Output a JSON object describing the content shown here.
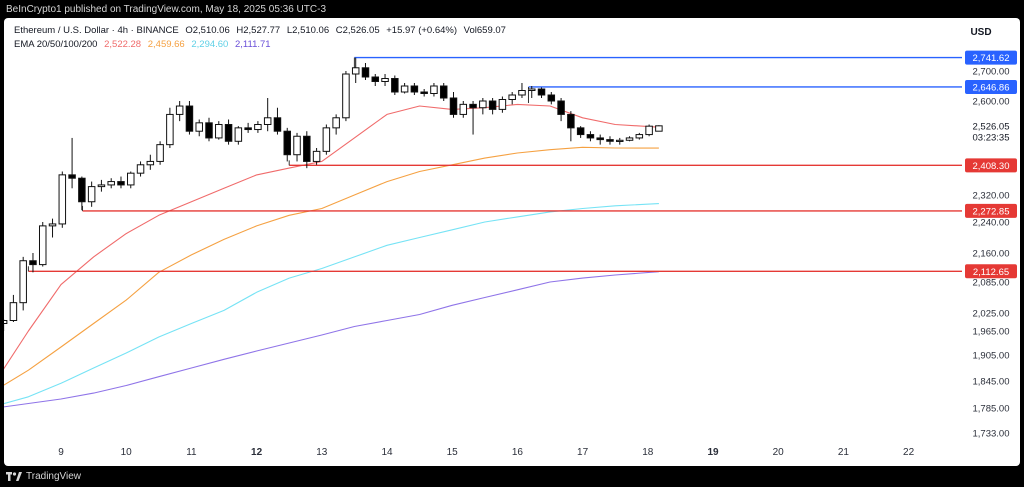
{
  "header": {
    "text": "BeInCrypto1 published on TradingView.com, May 18, 2025 05:36 UTC-3"
  },
  "legend": {
    "symbol": "Ethereum / U.S. Dollar · 4h · BINANCE",
    "o": "O2,510.06",
    "h": "H2,527.77",
    "l": "L2,510.06",
    "c": "C2,526.05",
    "chg": "+15.97 (+0.64%)",
    "vol": "Vol659.07",
    "ema_label": "EMA 20/50/100/200",
    "ema20": "2,522.28",
    "ema50": "2,459.66",
    "ema100": "2,294.60",
    "ema200": "2,111.71"
  },
  "footer": {
    "brand": "TradingView"
  },
  "colors": {
    "up": "#ffffff",
    "down": "#000000",
    "ema20": "#f06b6b",
    "ema50": "#f5a142",
    "ema100": "#76e3f5",
    "ema200": "#8f74e8",
    "support": "#e53935",
    "resistance": "#2962ff"
  },
  "chart_data": {
    "type": "candlestick",
    "currency": "USD",
    "price_labels": [
      {
        "label": "2,741.62",
        "value": 2741.62,
        "kind": "resistance"
      },
      {
        "label": "2,700.00",
        "value": 2700
      },
      {
        "label": "2,646.86",
        "value": 2646.86,
        "kind": "resistance"
      },
      {
        "label": "2,600.00",
        "value": 2600
      },
      {
        "label": "2,526.05",
        "value": 2526.05,
        "kind": "current"
      },
      {
        "label": "03:23:35",
        "value": 2500,
        "kind": "countdown"
      },
      {
        "label": "2,408.30",
        "value": 2408.3,
        "kind": "support"
      },
      {
        "label": "2,320.00",
        "value": 2320
      },
      {
        "label": "2,272.85",
        "value": 2272.85,
        "kind": "support"
      },
      {
        "label": "2,240.00",
        "value": 2240
      },
      {
        "label": "2,160.00",
        "value": 2160
      },
      {
        "label": "2,112.65",
        "value": 2112.65,
        "kind": "support"
      },
      {
        "label": "2,085.00",
        "value": 2085
      },
      {
        "label": "2,025.00",
        "value": 2025
      },
      {
        "label": "1,965.00",
        "value": 1965
      },
      {
        "label": "1,905.00",
        "value": 1905
      },
      {
        "label": "1,845.00",
        "value": 1845
      },
      {
        "label": "1,785.00",
        "value": 1785
      },
      {
        "label": "1,733.00",
        "value": 1733
      }
    ],
    "x_ticks": [
      {
        "label": "9",
        "day": 9,
        "bold": false
      },
      {
        "label": "10",
        "day": 10,
        "bold": false
      },
      {
        "label": "11",
        "day": 11,
        "bold": false
      },
      {
        "label": "12",
        "day": 12,
        "bold": true
      },
      {
        "label": "13",
        "day": 13,
        "bold": false
      },
      {
        "label": "14",
        "day": 14,
        "bold": false
      },
      {
        "label": "15",
        "day": 15,
        "bold": false
      },
      {
        "label": "16",
        "day": 16,
        "bold": false
      },
      {
        "label": "17",
        "day": 17,
        "bold": false
      },
      {
        "label": "18",
        "day": 18,
        "bold": false
      },
      {
        "label": "19",
        "day": 19,
        "bold": true
      },
      {
        "label": "20",
        "day": 20,
        "bold": false
      },
      {
        "label": "21",
        "day": 21,
        "bold": false
      },
      {
        "label": "22",
        "day": 22,
        "bold": false
      }
    ],
    "horizontal_levels": [
      {
        "value": 2741.62,
        "from_day": 13.5,
        "kind": "resistance"
      },
      {
        "value": 2646.86,
        "from_day": 16.17,
        "kind": "resistance"
      },
      {
        "value": 2408.3,
        "from_day": 12.5,
        "kind": "support"
      },
      {
        "value": 2272.85,
        "from_day": 9.33,
        "kind": "support"
      },
      {
        "value": 2112.65,
        "from_day": 8.5,
        "kind": "support"
      }
    ],
    "candles": [
      {
        "day": 8.12,
        "o": 1990,
        "h": 2005,
        "l": 1965,
        "c": 2000
      },
      {
        "day": 8.27,
        "o": 2000,
        "h": 2060,
        "l": 1995,
        "c": 2045
      },
      {
        "day": 8.42,
        "o": 2045,
        "h": 2150,
        "l": 2030,
        "c": 2140
      },
      {
        "day": 8.57,
        "o": 2140,
        "h": 2160,
        "l": 2110,
        "c": 2130
      },
      {
        "day": 8.72,
        "o": 2130,
        "h": 2240,
        "l": 2125,
        "c": 2230
      },
      {
        "day": 8.87,
        "o": 2230,
        "h": 2250,
        "l": 2200,
        "c": 2235
      },
      {
        "day": 9.02,
        "o": 2235,
        "h": 2390,
        "l": 2225,
        "c": 2380
      },
      {
        "day": 9.17,
        "o": 2380,
        "h": 2490,
        "l": 2340,
        "c": 2370
      },
      {
        "day": 9.32,
        "o": 2370,
        "h": 2375,
        "l": 2275,
        "c": 2300
      },
      {
        "day": 9.47,
        "o": 2300,
        "h": 2360,
        "l": 2285,
        "c": 2345
      },
      {
        "day": 9.62,
        "o": 2345,
        "h": 2365,
        "l": 2330,
        "c": 2350
      },
      {
        "day": 9.77,
        "o": 2350,
        "h": 2370,
        "l": 2340,
        "c": 2360
      },
      {
        "day": 9.92,
        "o": 2360,
        "h": 2375,
        "l": 2340,
        "c": 2350
      },
      {
        "day": 10.07,
        "o": 2350,
        "h": 2390,
        "l": 2340,
        "c": 2385
      },
      {
        "day": 10.22,
        "o": 2385,
        "h": 2420,
        "l": 2375,
        "c": 2410
      },
      {
        "day": 10.37,
        "o": 2410,
        "h": 2440,
        "l": 2395,
        "c": 2420
      },
      {
        "day": 10.52,
        "o": 2420,
        "h": 2480,
        "l": 2410,
        "c": 2470
      },
      {
        "day": 10.67,
        "o": 2470,
        "h": 2580,
        "l": 2460,
        "c": 2560
      },
      {
        "day": 10.82,
        "o": 2560,
        "h": 2600,
        "l": 2540,
        "c": 2585
      },
      {
        "day": 10.97,
        "o": 2585,
        "h": 2600,
        "l": 2500,
        "c": 2510
      },
      {
        "day": 11.12,
        "o": 2510,
        "h": 2545,
        "l": 2495,
        "c": 2535
      },
      {
        "day": 11.27,
        "o": 2535,
        "h": 2550,
        "l": 2480,
        "c": 2490
      },
      {
        "day": 11.42,
        "o": 2490,
        "h": 2540,
        "l": 2485,
        "c": 2530
      },
      {
        "day": 11.57,
        "o": 2530,
        "h": 2545,
        "l": 2470,
        "c": 2480
      },
      {
        "day": 11.72,
        "o": 2480,
        "h": 2525,
        "l": 2470,
        "c": 2520
      },
      {
        "day": 11.87,
        "o": 2520,
        "h": 2535,
        "l": 2505,
        "c": 2515
      },
      {
        "day": 12.02,
        "o": 2515,
        "h": 2540,
        "l": 2505,
        "c": 2530
      },
      {
        "day": 12.17,
        "o": 2530,
        "h": 2610,
        "l": 2510,
        "c": 2550
      },
      {
        "day": 12.32,
        "o": 2550,
        "h": 2580,
        "l": 2500,
        "c": 2510
      },
      {
        "day": 12.47,
        "o": 2510,
        "h": 2520,
        "l": 2420,
        "c": 2440
      },
      {
        "day": 12.62,
        "o": 2440,
        "h": 2505,
        "l": 2420,
        "c": 2495
      },
      {
        "day": 12.77,
        "o": 2495,
        "h": 2510,
        "l": 2400,
        "c": 2420
      },
      {
        "day": 12.92,
        "o": 2420,
        "h": 2460,
        "l": 2410,
        "c": 2450
      },
      {
        "day": 13.07,
        "o": 2450,
        "h": 2530,
        "l": 2440,
        "c": 2520
      },
      {
        "day": 13.22,
        "o": 2520,
        "h": 2560,
        "l": 2500,
        "c": 2550
      },
      {
        "day": 13.37,
        "o": 2550,
        "h": 2700,
        "l": 2540,
        "c": 2690
      },
      {
        "day": 13.52,
        "o": 2690,
        "h": 2741,
        "l": 2660,
        "c": 2710
      },
      {
        "day": 13.67,
        "o": 2710,
        "h": 2725,
        "l": 2670,
        "c": 2680
      },
      {
        "day": 13.82,
        "o": 2680,
        "h": 2690,
        "l": 2650,
        "c": 2665
      },
      {
        "day": 13.97,
        "o": 2665,
        "h": 2690,
        "l": 2650,
        "c": 2675
      },
      {
        "day": 14.12,
        "o": 2675,
        "h": 2685,
        "l": 2620,
        "c": 2630
      },
      {
        "day": 14.27,
        "o": 2630,
        "h": 2660,
        "l": 2625,
        "c": 2650
      },
      {
        "day": 14.42,
        "o": 2650,
        "h": 2660,
        "l": 2620,
        "c": 2630
      },
      {
        "day": 14.57,
        "o": 2630,
        "h": 2640,
        "l": 2615,
        "c": 2625
      },
      {
        "day": 14.72,
        "o": 2625,
        "h": 2660,
        "l": 2615,
        "c": 2650
      },
      {
        "day": 14.87,
        "o": 2650,
        "h": 2660,
        "l": 2600,
        "c": 2610
      },
      {
        "day": 15.02,
        "o": 2610,
        "h": 2630,
        "l": 2550,
        "c": 2560
      },
      {
        "day": 15.17,
        "o": 2560,
        "h": 2600,
        "l": 2550,
        "c": 2590
      },
      {
        "day": 15.32,
        "o": 2590,
        "h": 2600,
        "l": 2500,
        "c": 2580
      },
      {
        "day": 15.47,
        "o": 2580,
        "h": 2610,
        "l": 2560,
        "c": 2600
      },
      {
        "day": 15.62,
        "o": 2600,
        "h": 2610,
        "l": 2560,
        "c": 2575
      },
      {
        "day": 15.77,
        "o": 2575,
        "h": 2615,
        "l": 2565,
        "c": 2605
      },
      {
        "day": 15.92,
        "o": 2605,
        "h": 2630,
        "l": 2590,
        "c": 2620
      },
      {
        "day": 16.07,
        "o": 2620,
        "h": 2660,
        "l": 2610,
        "c": 2635
      },
      {
        "day": 16.22,
        "o": 2635,
        "h": 2650,
        "l": 2610,
        "c": 2640
      },
      {
        "day": 16.37,
        "o": 2640,
        "h": 2645,
        "l": 2610,
        "c": 2620
      },
      {
        "day": 16.52,
        "o": 2620,
        "h": 2630,
        "l": 2590,
        "c": 2600
      },
      {
        "day": 16.67,
        "o": 2600,
        "h": 2610,
        "l": 2540,
        "c": 2560
      },
      {
        "day": 16.82,
        "o": 2560,
        "h": 2570,
        "l": 2480,
        "c": 2520
      },
      {
        "day": 16.97,
        "o": 2520,
        "h": 2525,
        "l": 2490,
        "c": 2500
      },
      {
        "day": 17.12,
        "o": 2500,
        "h": 2510,
        "l": 2480,
        "c": 2490
      },
      {
        "day": 17.27,
        "o": 2490,
        "h": 2500,
        "l": 2470,
        "c": 2485
      },
      {
        "day": 17.42,
        "o": 2485,
        "h": 2495,
        "l": 2470,
        "c": 2480
      },
      {
        "day": 17.57,
        "o": 2480,
        "h": 2490,
        "l": 2470,
        "c": 2483
      },
      {
        "day": 17.72,
        "o": 2483,
        "h": 2495,
        "l": 2480,
        "c": 2490
      },
      {
        "day": 17.87,
        "o": 2490,
        "h": 2505,
        "l": 2485,
        "c": 2500
      },
      {
        "day": 18.02,
        "o": 2500,
        "h": 2530,
        "l": 2495,
        "c": 2525
      },
      {
        "day": 18.17,
        "o": 2510.06,
        "h": 2527.77,
        "l": 2510.06,
        "c": 2526.05
      }
    ],
    "ema": [
      {
        "name": "EMA 20",
        "color": "#f06b6b",
        "points": [
          [
            8.0,
            1845
          ],
          [
            8.5,
            1965
          ],
          [
            9.0,
            2080
          ],
          [
            9.5,
            2150
          ],
          [
            10.0,
            2210
          ],
          [
            10.5,
            2260
          ],
          [
            11.0,
            2300
          ],
          [
            11.5,
            2340
          ],
          [
            12.0,
            2380
          ],
          [
            12.5,
            2400
          ],
          [
            13.0,
            2420
          ],
          [
            13.5,
            2490
          ],
          [
            14.0,
            2560
          ],
          [
            14.5,
            2585
          ],
          [
            15.0,
            2575
          ],
          [
            15.5,
            2580
          ],
          [
            16.0,
            2590
          ],
          [
            16.5,
            2585
          ],
          [
            17.0,
            2550
          ],
          [
            17.5,
            2530
          ],
          [
            18.17,
            2522
          ]
        ]
      },
      {
        "name": "EMA 50",
        "color": "#f5a142",
        "points": [
          [
            8.0,
            1825
          ],
          [
            8.5,
            1870
          ],
          [
            9.0,
            1925
          ],
          [
            9.5,
            1990
          ],
          [
            10.0,
            2050
          ],
          [
            10.5,
            2110
          ],
          [
            11.0,
            2155
          ],
          [
            11.5,
            2195
          ],
          [
            12.0,
            2230
          ],
          [
            12.5,
            2260
          ],
          [
            13.0,
            2280
          ],
          [
            13.5,
            2320
          ],
          [
            14.0,
            2360
          ],
          [
            14.5,
            2390
          ],
          [
            15.0,
            2410
          ],
          [
            15.5,
            2430
          ],
          [
            16.0,
            2445
          ],
          [
            16.5,
            2455
          ],
          [
            17.0,
            2462
          ],
          [
            17.5,
            2460
          ],
          [
            18.17,
            2459.66
          ]
        ]
      },
      {
        "name": "EMA 100",
        "color": "#76e3f5",
        "points": [
          [
            8.0,
            1790
          ],
          [
            8.5,
            1810
          ],
          [
            9.0,
            1840
          ],
          [
            9.5,
            1875
          ],
          [
            10.0,
            1910
          ],
          [
            10.5,
            1950
          ],
          [
            11.0,
            1990
          ],
          [
            11.5,
            2030
          ],
          [
            12.0,
            2065
          ],
          [
            12.5,
            2095
          ],
          [
            13.0,
            2120
          ],
          [
            13.5,
            2150
          ],
          [
            14.0,
            2180
          ],
          [
            14.5,
            2200
          ],
          [
            15.0,
            2220
          ],
          [
            15.5,
            2240
          ],
          [
            16.0,
            2255
          ],
          [
            16.5,
            2270
          ],
          [
            17.0,
            2280
          ],
          [
            17.5,
            2288
          ],
          [
            18.17,
            2294.6
          ]
        ]
      },
      {
        "name": "EMA 200",
        "color": "#8f74e8",
        "points": [
          [
            8.0,
            1785
          ],
          [
            8.5,
            1795
          ],
          [
            9.0,
            1805
          ],
          [
            9.5,
            1818
          ],
          [
            10.0,
            1835
          ],
          [
            10.5,
            1855
          ],
          [
            11.0,
            1875
          ],
          [
            11.5,
            1895
          ],
          [
            12.0,
            1915
          ],
          [
            12.5,
            1935
          ],
          [
            13.0,
            1955
          ],
          [
            13.5,
            1980
          ],
          [
            14.0,
            2000
          ],
          [
            14.5,
            2020
          ],
          [
            15.0,
            2040
          ],
          [
            15.5,
            2055
          ],
          [
            16.0,
            2070
          ],
          [
            16.5,
            2085
          ],
          [
            17.0,
            2095
          ],
          [
            17.5,
            2103
          ],
          [
            18.17,
            2111.71
          ]
        ]
      }
    ]
  }
}
